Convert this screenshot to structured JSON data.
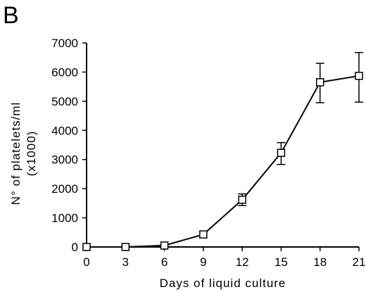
{
  "panel_label": "B",
  "chart_data": {
    "type": "line",
    "xlabel": "Days of liquid culture",
    "ylabel_line1": "N° of platelets/ml",
    "ylabel_line2": "(x1000)",
    "x_ticks": [
      "0",
      "3",
      "6",
      "9",
      "12",
      "15",
      "18",
      "21"
    ],
    "y_ticks": [
      "0",
      "1000",
      "2000",
      "3000",
      "4000",
      "5000",
      "6000",
      "7000"
    ],
    "xlim": [
      0,
      21
    ],
    "ylim": [
      0,
      7000
    ],
    "grid": false,
    "series": [
      {
        "marker": "open-square",
        "color": "#000000",
        "x": [
          0,
          3,
          6,
          9,
          12,
          15,
          18,
          21
        ],
        "y": [
          0,
          0,
          50,
          430,
          1620,
          3230,
          5650,
          5870
        ],
        "err_upper": [
          0,
          0,
          0,
          0,
          200,
          350,
          650,
          800
        ],
        "err_lower": [
          0,
          0,
          0,
          0,
          200,
          400,
          700,
          900
        ]
      }
    ]
  }
}
